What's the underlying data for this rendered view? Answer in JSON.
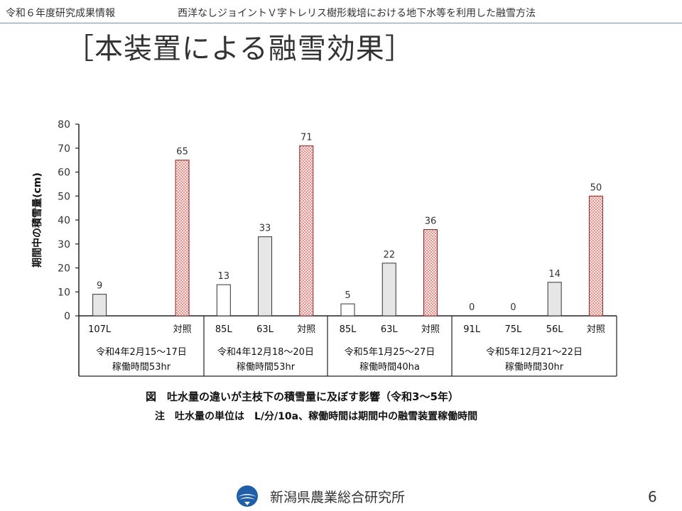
{
  "header": {
    "left_text": "令和６年度研究成果情報",
    "right_text": "西洋なしジョイントＶ字トレリス樹形栽培における地下水等を利用した融雪方法"
  },
  "slide_title": "［本装置による融雪効果］",
  "chart_data": {
    "type": "bar",
    "ylabel": "期間中の積雪量(cm)",
    "ylim": [
      0,
      80
    ],
    "yticks": [
      0,
      10,
      20,
      30,
      40,
      50,
      60,
      70,
      80
    ],
    "groups": [
      {
        "label_line1": "令和4年2月15～17日",
        "label_line2": "稼働時間53hr",
        "bars": [
          {
            "category": "107L",
            "value": 9,
            "style": "gray"
          },
          {
            "category": "対照",
            "value": 65,
            "style": "control"
          }
        ]
      },
      {
        "label_line1": "令和4年12月18～20日",
        "label_line2": "稼働時間53hr",
        "bars": [
          {
            "category": "85L",
            "value": 13,
            "style": "white"
          },
          {
            "category": "63L",
            "value": 33,
            "style": "gray"
          },
          {
            "category": "対照",
            "value": 71,
            "style": "control"
          }
        ]
      },
      {
        "label_line1": "令和5年1月25～27日",
        "label_line2": "稼働時間40ha",
        "bars": [
          {
            "category": "85L",
            "value": 5,
            "style": "white"
          },
          {
            "category": "63L",
            "value": 22,
            "style": "gray"
          },
          {
            "category": "対照",
            "value": 36,
            "style": "control"
          }
        ]
      },
      {
        "label_line1": "令和5年12月21～22日",
        "label_line2": "稼働時間30hr",
        "bars": [
          {
            "category": "91L",
            "value": 0,
            "style": "white"
          },
          {
            "category": "75L",
            "value": 0,
            "style": "white"
          },
          {
            "category": "56L",
            "value": 14,
            "style": "gray"
          },
          {
            "category": "対照",
            "value": 50,
            "style": "control"
          }
        ]
      }
    ],
    "colors": {
      "gray": "#e6e6e6",
      "white": "#ffffff",
      "control_fill": "#fbe6e6",
      "control_dot": "#c0392b",
      "axis": "#222222"
    }
  },
  "caption": "図　吐水量の違いが主枝下の積雪量に及ぼす影響（令和3～5年）",
  "note": "注　吐水量の単位は　L/分/10a、稼働時間は期間中の融雪装置稼働時間",
  "footer": {
    "org": "新潟県農業総合研究所",
    "logo_icon": "niigata-prefecture-logo-icon",
    "page_number": "6"
  }
}
